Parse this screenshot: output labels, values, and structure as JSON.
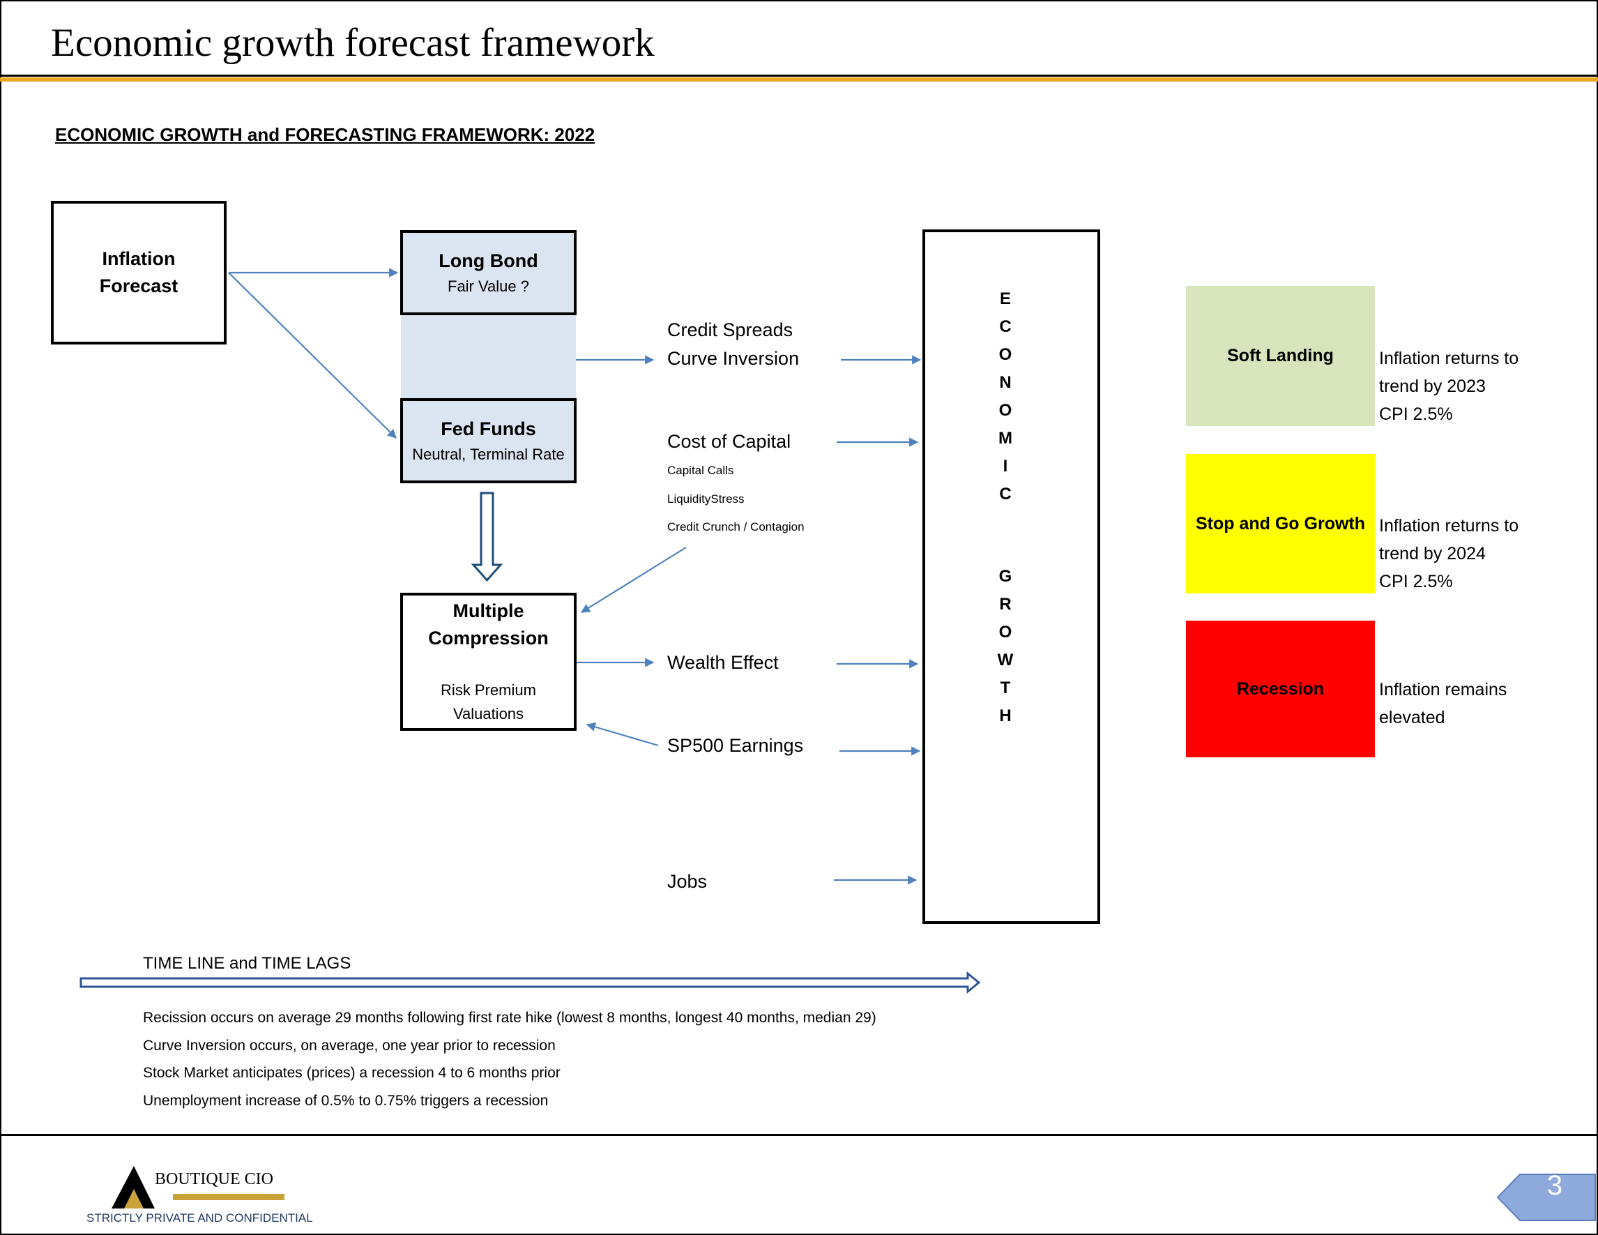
{
  "slide_title": "Economic growth forecast framework",
  "subtitle": "ECONOMIC GROWTH and FORECASTING FRAMEWORK: 2022",
  "boxes": {
    "inflation_forecast": {
      "line1": "Inflation",
      "line2": "Forecast"
    },
    "long_bond": {
      "title": "Long Bond",
      "sub": "Fair Value ?"
    },
    "fed_funds": {
      "title": "Fed Funds",
      "sub": "Neutral, Terminal Rate"
    },
    "multiple_compression": {
      "line1": "Multiple",
      "line2": "Compression",
      "sub1": "Risk Premium",
      "sub2": "Valuations"
    }
  },
  "drivers": {
    "credit_spreads": "Credit Spreads",
    "curve_inversion": "Curve Inversion",
    "cost_of_capital": "Cost of Capital",
    "capital_calls": "Capital Calls",
    "liquidity_stress": "LiquidityStress",
    "credit_crunch": "Credit Crunch / Contagion",
    "wealth_effect": "Wealth Effect",
    "sp500_earnings": "SP500 Earnings",
    "jobs": "Jobs"
  },
  "economic_growth_letters": [
    "E",
    "C",
    "O",
    "N",
    "O",
    "M",
    "I",
    "C",
    "G",
    "R",
    "O",
    "W",
    "T",
    "H"
  ],
  "scenarios": [
    {
      "label": "Soft Landing",
      "color": "#d8e4bc",
      "desc": [
        "Inflation returns to",
        "trend by 2023",
        "CPI 2.5%"
      ]
    },
    {
      "label": "Stop and Go Growth",
      "color": "#ffff00",
      "desc": [
        "Inflation returns to",
        "trend by 2024",
        "CPI 2.5%"
      ]
    },
    {
      "label": "Recession",
      "color": "#ff0000",
      "desc": [
        "Inflation remains",
        "elevated"
      ]
    }
  ],
  "timeline": {
    "label": "TIME LINE and TIME LAGS",
    "notes": [
      "Recission occurs on average 29 months following first rate hike (lowest 8 months, longest 40 months, median 29)",
      "Curve Inversion occurs, on average, one year prior to recession",
      "Stock Market anticipates (prices) a recession 4 to 6 months prior",
      "Unemployment increase of 0.5% to 0.75% triggers a recession"
    ]
  },
  "footer": {
    "brand": "BOUTIQUE CIO",
    "confidential": "STRICTLY PRIVATE AND CONFIDENTIAL",
    "page_number": "3"
  },
  "colors": {
    "accent_gold": "#e8a81e",
    "arrow_blue": "#4f81bd",
    "box_fill_blue": "#dbe5f1",
    "page_tab": "#8ea9db"
  }
}
